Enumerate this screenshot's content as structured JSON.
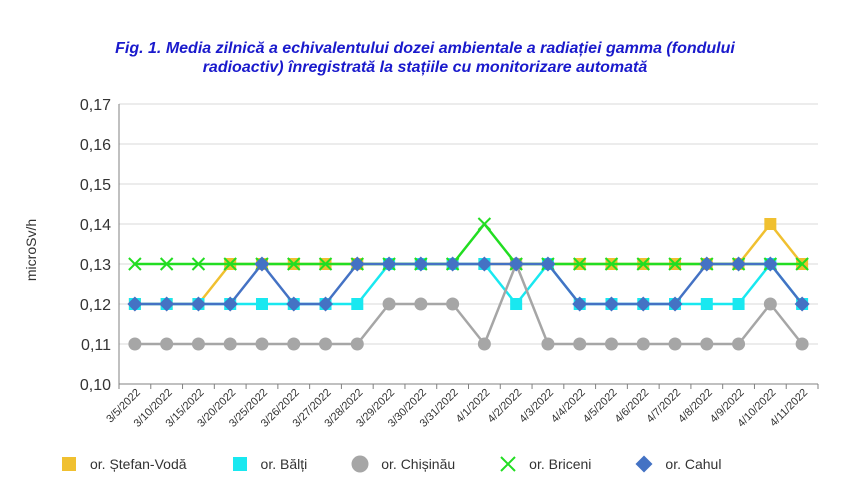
{
  "chart_data": {
    "type": "line",
    "title_line1": "Fig. 1. Media zilnică a echivalentului dozei ambientale a radiației gamma (fondului",
    "title_line2": "radioactiv) înregistrată la stațiile cu monitorizare automată",
    "xlabel": "",
    "ylabel": "microSv/h",
    "ylim": [
      0.1,
      0.17
    ],
    "yticks": [
      "0,10",
      "0,11",
      "0,12",
      "0,13",
      "0,14",
      "0,15",
      "0,16",
      "0,17"
    ],
    "grid": true,
    "legend_position": "bottom",
    "categories": [
      "3/5/2022",
      "3/10/2022",
      "3/15/2022",
      "3/20/2022",
      "3/25/2022",
      "3/26/2022",
      "3/27/2022",
      "3/28/2022",
      "3/29/2022",
      "3/30/2022",
      "3/31/2022",
      "4/1/2022",
      "4/2/2022",
      "4/3/2022",
      "4/4/2022",
      "4/5/2022",
      "4/6/2022",
      "4/7/2022",
      "4/8/2022",
      "4/9/2022",
      "4/10/2022",
      "4/11/2022"
    ],
    "series": [
      {
        "name": "or. Ștefan-Vodă",
        "color": "#f0c030",
        "marker": "square",
        "values": [
          0.12,
          0.12,
          0.12,
          0.13,
          0.13,
          0.13,
          0.13,
          0.13,
          0.13,
          0.13,
          0.13,
          0.13,
          0.13,
          0.13,
          0.13,
          0.13,
          0.13,
          0.13,
          0.13,
          0.13,
          0.14,
          0.13
        ]
      },
      {
        "name": "or. Bălți",
        "color": "#19e8f0",
        "marker": "square",
        "values": [
          0.12,
          0.12,
          0.12,
          0.12,
          0.12,
          0.12,
          0.12,
          0.12,
          0.13,
          0.13,
          0.13,
          0.13,
          0.12,
          0.13,
          0.12,
          0.12,
          0.12,
          0.12,
          0.12,
          0.12,
          0.13,
          0.12
        ]
      },
      {
        "name": "or. Chișinău",
        "color": "#a6a6a6",
        "marker": "circle",
        "values": [
          0.11,
          0.11,
          0.11,
          0.11,
          0.11,
          0.11,
          0.11,
          0.11,
          0.12,
          0.12,
          0.12,
          0.11,
          0.13,
          0.11,
          0.11,
          0.11,
          0.11,
          0.11,
          0.11,
          0.11,
          0.12,
          0.11
        ]
      },
      {
        "name": "or. Briceni",
        "color": "#22dd22",
        "marker": "x",
        "values": [
          0.13,
          0.13,
          0.13,
          0.13,
          0.13,
          0.13,
          0.13,
          0.13,
          0.13,
          0.13,
          0.13,
          0.14,
          0.13,
          0.13,
          0.13,
          0.13,
          0.13,
          0.13,
          0.13,
          0.13,
          0.13,
          0.13
        ]
      },
      {
        "name": "or. Cahul",
        "color": "#4472c4",
        "marker": "diamond",
        "values": [
          0.12,
          0.12,
          0.12,
          0.12,
          0.13,
          0.12,
          0.12,
          0.13,
          0.13,
          0.13,
          0.13,
          0.13,
          0.13,
          0.13,
          0.12,
          0.12,
          0.12,
          0.12,
          0.13,
          0.13,
          0.13,
          0.12
        ]
      }
    ]
  }
}
